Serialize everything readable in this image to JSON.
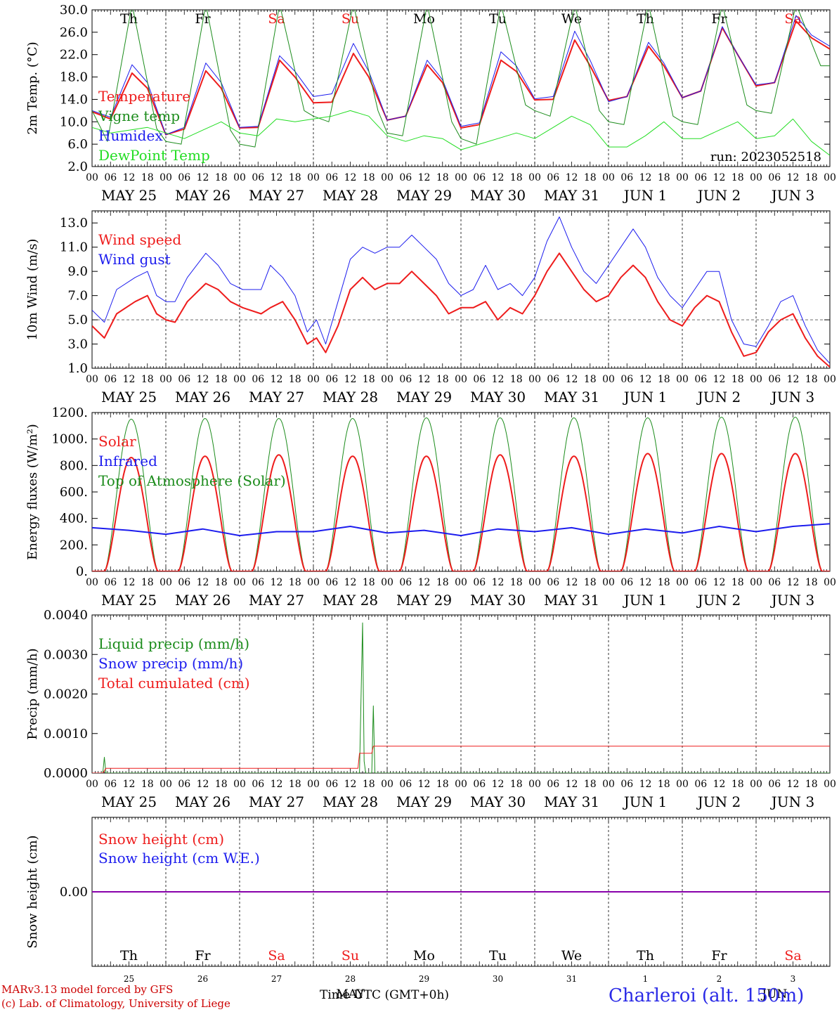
{
  "footer": {
    "credit_line1": "MARv3.13 model forced by GFS",
    "credit_line2": "(c) Lab. of Climatology, University of Liege",
    "xaxis_title": "Time UTC (GMT+0h)",
    "station": "Charleroi (alt. 150m)"
  },
  "colors": {
    "red": "#ee1c1c",
    "blue": "#1c1cee",
    "green": "#1c8c1c",
    "lightgreen": "#22dd22",
    "purple": "#8800aa",
    "weekend": "#ee1c1c",
    "text": "#000000"
  },
  "chart_data": {
    "type": "line",
    "hour_ticks": [
      "00",
      "06",
      "12",
      "18"
    ],
    "dates": [
      "MAY 25",
      "MAY 26",
      "MAY 27",
      "MAY 28",
      "MAY 29",
      "MAY 30",
      "MAY 31",
      "JUN  1",
      "JUN  2",
      "JUN  3"
    ],
    "days": [
      "Th",
      "Fr",
      "Sa",
      "Su",
      "Mo",
      "Tu",
      "We",
      "Th",
      "Fr",
      "Sa"
    ],
    "weekend_days": [
      "Sa",
      "Su"
    ],
    "bottom_day_numbers": [
      "25",
      "26",
      "27",
      "28",
      "29",
      "30",
      "31",
      "1",
      "2",
      "3"
    ],
    "bottom_month_label": "MAY",
    "bottom_month_label2": "JUN",
    "x_range_hours": [
      0,
      240
    ],
    "panels": [
      {
        "id": "temp",
        "ylabel": "2m Temp. (°C)",
        "ylim": [
          2,
          30
        ],
        "yticks": [
          "2.0",
          "6.0",
          "10.0",
          "14.0",
          "18.0",
          "22.0",
          "26.0",
          "30.0"
        ],
        "ytick_values": [
          2,
          6,
          10,
          14,
          18,
          22,
          26,
          30
        ],
        "show_days_top": true,
        "run_label": "run: 2023052518",
        "legend": [
          {
            "label": "Temperature",
            "color": "#ee1c1c"
          },
          {
            "label": "Vigne temp",
            "color": "#1c8c1c"
          },
          {
            "label": "Humidex",
            "color": "#1c1cee"
          },
          {
            "label": "DewPoint Temp",
            "color": "#22dd22"
          }
        ],
        "series": [
          {
            "name": "Temperature",
            "color": "#ee1c1c",
            "width": 2,
            "x": [
              0,
              6,
              13,
              18,
              24,
              30,
              37,
              42,
              48,
              54,
              61,
              66,
              72,
              78,
              85,
              90,
              96,
              102,
              109,
              114,
              120,
              126,
              133,
              138,
              144,
              150,
              157,
              162,
              168,
              174,
              181,
              186,
              192,
              198,
              205,
              210,
              216,
              222,
              229,
              234,
              240
            ],
            "y": [
              11.8,
              10.5,
              18.7,
              16.0,
              7.7,
              8.7,
              19.1,
              16.0,
              8.9,
              9.0,
              21.0,
              18.0,
              13.4,
              13.5,
              22.2,
              18.0,
              10.3,
              11.0,
              20.2,
              17.0,
              8.9,
              9.5,
              21.0,
              19.0,
              13.9,
              14.0,
              24.6,
              20.0,
              13.8,
              14.5,
              23.5,
              20.0,
              14.3,
              15.5,
              26.8,
              22.0,
              16.4,
              17.0,
              28.0,
              25.0,
              23.0
            ]
          },
          {
            "name": "Humidex",
            "color": "#1c1cee",
            "width": 1,
            "x": [
              0,
              6,
              13,
              18,
              24,
              30,
              37,
              42,
              48,
              54,
              61,
              66,
              72,
              78,
              85,
              90,
              96,
              102,
              109,
              114,
              120,
              126,
              133,
              138,
              144,
              150,
              157,
              162,
              168,
              174,
              181,
              186,
              192,
              198,
              205,
              210,
              216,
              222,
              229,
              234,
              240
            ],
            "y": [
              12.0,
              10.8,
              20.2,
              17.0,
              7.7,
              9.0,
              20.5,
              17.0,
              9.0,
              9.2,
              21.8,
              19.0,
              14.5,
              15.0,
              24.0,
              19.0,
              10.3,
              11.0,
              21.0,
              17.5,
              9.2,
              9.8,
              22.5,
              20.0,
              14.1,
              14.5,
              26.2,
              21.0,
              13.6,
              14.5,
              24.2,
              20.5,
              14.3,
              15.5,
              27.0,
              22.0,
              16.6,
              17.0,
              29.0,
              25.5,
              23.5
            ]
          },
          {
            "name": "Vigne temp",
            "color": "#1c8c1c",
            "width": 1,
            "x": [
              0,
              5,
              13,
              21,
              24,
              29,
              37,
              45,
              48,
              53,
              61,
              69,
              72,
              77,
              85,
              93,
              96,
              101,
              109,
              117,
              120,
              125,
              133,
              141,
              144,
              149,
              157,
              165,
              168,
              173,
              181,
              189,
              192,
              197,
              205,
              213,
              216,
              221,
              229,
              237,
              240
            ],
            "y": [
              12.0,
              6.5,
              31.0,
              8.8,
              6.5,
              6.0,
              31.0,
              8.5,
              6.0,
              5.5,
              31.0,
              12.0,
              11.0,
              10.0,
              31.0,
              12.0,
              8.0,
              7.5,
              31.0,
              10.0,
              7.0,
              6.0,
              31.0,
              13.0,
              12.0,
              11.0,
              31.0,
              12.0,
              10.0,
              9.5,
              31.0,
              11.0,
              10.0,
              9.5,
              31.0,
              13.0,
              12.0,
              11.5,
              31.0,
              20.0,
              20.0
            ]
          },
          {
            "name": "DewPoint Temp",
            "color": "#22dd22",
            "width": 1,
            "x": [
              0,
              6,
              12,
              18,
              24,
              30,
              36,
              42,
              48,
              54,
              60,
              66,
              72,
              78,
              84,
              90,
              96,
              102,
              108,
              114,
              120,
              126,
              132,
              138,
              144,
              150,
              156,
              162,
              168,
              174,
              180,
              186,
              192,
              198,
              204,
              210,
              216,
              222,
              228,
              234,
              240
            ],
            "y": [
              9.0,
              8.0,
              8.5,
              9.0,
              8.0,
              7.0,
              8.5,
              10.0,
              8.0,
              7.5,
              10.5,
              10.0,
              10.5,
              11.0,
              12.0,
              11.0,
              7.5,
              6.5,
              7.5,
              7.0,
              5.0,
              6.0,
              7.0,
              8.0,
              7.0,
              9.0,
              11.0,
              9.5,
              5.5,
              5.5,
              7.5,
              10.0,
              7.0,
              7.0,
              8.5,
              10.0,
              7.0,
              7.5,
              10.5,
              6.5,
              4.0
            ]
          }
        ]
      },
      {
        "id": "wind",
        "ylabel": "10m Wind (m/s)",
        "ylim": [
          1,
          14
        ],
        "yticks": [
          "1.0",
          "3.0",
          "5.0",
          "7.0",
          "9.0",
          "11.0",
          "13.0"
        ],
        "ytick_values": [
          1,
          3,
          5,
          7,
          9,
          11,
          13
        ],
        "hline": 5,
        "legend": [
          {
            "label": "Wind speed",
            "color": "#ee1c1c"
          },
          {
            "label": "Wind gust",
            "color": "#1c1cee"
          }
        ],
        "series": [
          {
            "name": "Wind speed",
            "color": "#ee1c1c",
            "width": 2,
            "x": [
              0,
              4,
              8,
              14,
              18,
              21,
              24,
              27,
              31,
              37,
              41,
              45,
              49,
              55,
              58,
              62,
              66,
              70,
              73,
              76,
              80,
              84,
              88,
              92,
              96,
              100,
              104,
              108,
              112,
              116,
              120,
              124,
              128,
              132,
              136,
              140,
              144,
              148,
              152,
              156,
              160,
              164,
              168,
              172,
              176,
              180,
              184,
              188,
              192,
              196,
              200,
              204,
              208,
              212,
              216,
              220,
              224,
              228,
              232,
              236,
              240
            ],
            "y": [
              4.5,
              3.5,
              5.5,
              6.5,
              7.0,
              5.5,
              5.0,
              4.8,
              6.5,
              8.0,
              7.5,
              6.5,
              6.0,
              5.5,
              6.0,
              6.5,
              5.0,
              3.0,
              3.5,
              2.3,
              4.5,
              7.5,
              8.5,
              7.5,
              8.0,
              8.0,
              9.0,
              8.0,
              7.0,
              5.5,
              6.0,
              6.0,
              6.5,
              5.0,
              6.0,
              5.5,
              7.0,
              9.0,
              10.5,
              9.0,
              7.5,
              6.5,
              7.0,
              8.5,
              9.5,
              8.5,
              6.5,
              5.0,
              4.5,
              6.0,
              7.0,
              6.5,
              4.0,
              2.0,
              2.3,
              4.0,
              5.0,
              5.5,
              3.5,
              2.0,
              1.1
            ]
          },
          {
            "name": "Wind gust",
            "color": "#1c1cee",
            "width": 1,
            "x": [
              0,
              4,
              8,
              14,
              18,
              21,
              24,
              27,
              31,
              37,
              41,
              45,
              49,
              55,
              58,
              62,
              66,
              70,
              73,
              76,
              80,
              84,
              88,
              92,
              96,
              100,
              104,
              108,
              112,
              116,
              120,
              124,
              128,
              132,
              136,
              140,
              144,
              148,
              152,
              156,
              160,
              164,
              168,
              172,
              176,
              180,
              184,
              188,
              192,
              196,
              200,
              204,
              208,
              212,
              216,
              220,
              224,
              228,
              232,
              236,
              240
            ],
            "y": [
              5.8,
              4.8,
              7.5,
              8.5,
              9.0,
              7.0,
              6.5,
              6.5,
              8.5,
              10.5,
              9.5,
              8.0,
              7.5,
              7.5,
              9.5,
              8.5,
              7.0,
              4.0,
              5.0,
              3.0,
              6.5,
              10.0,
              11.0,
              10.5,
              11.0,
              11.0,
              12.0,
              11.0,
              10.0,
              8.0,
              7.0,
              7.5,
              9.5,
              7.5,
              8.0,
              7.0,
              8.5,
              11.5,
              13.5,
              11.0,
              9.0,
              8.0,
              9.5,
              11.0,
              12.5,
              11.0,
              8.5,
              7.0,
              6.0,
              7.5,
              9.0,
              9.0,
              5.0,
              3.0,
              2.8,
              4.5,
              6.5,
              7.0,
              4.5,
              2.5,
              1.4
            ]
          }
        ]
      },
      {
        "id": "energy",
        "ylabel": "Energy fluxes (W/m²)",
        "ylim": [
          0,
          1200
        ],
        "yticks": [
          "0.",
          "200.",
          "400.",
          "600.",
          "800.",
          "1000.",
          "1200."
        ],
        "ytick_values": [
          0,
          200,
          400,
          600,
          800,
          1000,
          1200
        ],
        "legend": [
          {
            "label": "Solar",
            "color": "#ee1c1c"
          },
          {
            "label": "Infrared",
            "color": "#1c1cee"
          },
          {
            "label": "Top of Atmosphere (Solar)",
            "color": "#1c8c1c"
          }
        ],
        "daily_cycle": {
          "rise_hour": 4,
          "set_hour": 21.5
        },
        "toa_peak": [
          1150,
          1155,
          1155,
          1155,
          1160,
          1160,
          1160,
          1160,
          1165,
          1165
        ],
        "solar_peak": [
          860,
          870,
          880,
          870,
          870,
          880,
          870,
          890,
          890,
          890
        ],
        "series": [
          {
            "name": "Infrared",
            "color": "#1c1cee",
            "width": 2,
            "x": [
              0,
              12,
              24,
              36,
              48,
              60,
              72,
              84,
              96,
              108,
              120,
              132,
              144,
              156,
              168,
              180,
              192,
              204,
              216,
              228,
              240
            ],
            "y": [
              330,
              310,
              280,
              320,
              270,
              300,
              300,
              340,
              290,
              310,
              270,
              320,
              300,
              330,
              280,
              320,
              290,
              340,
              300,
              340,
              360
            ]
          }
        ]
      },
      {
        "id": "precip",
        "ylabel": "Precip (mm/h)",
        "ylim": [
          0,
          0.004
        ],
        "yticks": [
          "0.0000",
          "0.0010",
          "0.0020",
          "0.0030",
          "0.0040"
        ],
        "ytick_values": [
          0,
          0.001,
          0.002,
          0.003,
          0.004
        ],
        "legend": [
          {
            "label": "Liquid precip (mm/h)",
            "color": "#1c8c1c"
          },
          {
            "label": "Snow precip (mm/h)",
            "color": "#1c1cee"
          },
          {
            "label": "Total cumulated (cm)",
            "color": "#ee1c1c"
          }
        ],
        "series": [
          {
            "name": "Liquid precip (mm/h)",
            "color": "#1c8c1c",
            "width": 1,
            "x": [
              0,
              3.5,
              4.0,
              4.5,
              87,
              88.0,
              88.5,
              89,
              91,
              91.5,
              92.0,
              92.5,
              240
            ],
            "y": [
              0,
              0,
              0.0004,
              0,
              0,
              0.0038,
              0.0003,
              0,
              0,
              0.0017,
              0,
              0,
              0
            ]
          },
          {
            "name": "Total cumulated (cm)",
            "color": "#ee1c1c",
            "width": 1,
            "x": [
              0,
              3.5,
              4.5,
              86.5,
              87,
              91,
              91.5,
              240
            ],
            "y": [
              0,
              0,
              0.00012,
              0.00012,
              0.0005,
              0.0005,
              0.00068,
              0.00068
            ]
          }
        ]
      },
      {
        "id": "snow",
        "ylabel": "Snow height (cm)",
        "ylim": [
          -0.01,
          0.01
        ],
        "yticks": [
          "0.00"
        ],
        "ytick_values": [
          0
        ],
        "show_days_bottom": true,
        "legend": [
          {
            "label": "Snow height (cm)",
            "color": "#ee1c1c"
          },
          {
            "label": "Snow height (cm W.E.)",
            "color": "#1c1cee"
          }
        ],
        "series": [
          {
            "name": "Snow height",
            "color": "#8800aa",
            "width": 2,
            "x": [
              0,
              240
            ],
            "y": [
              0,
              0
            ]
          }
        ]
      }
    ]
  }
}
